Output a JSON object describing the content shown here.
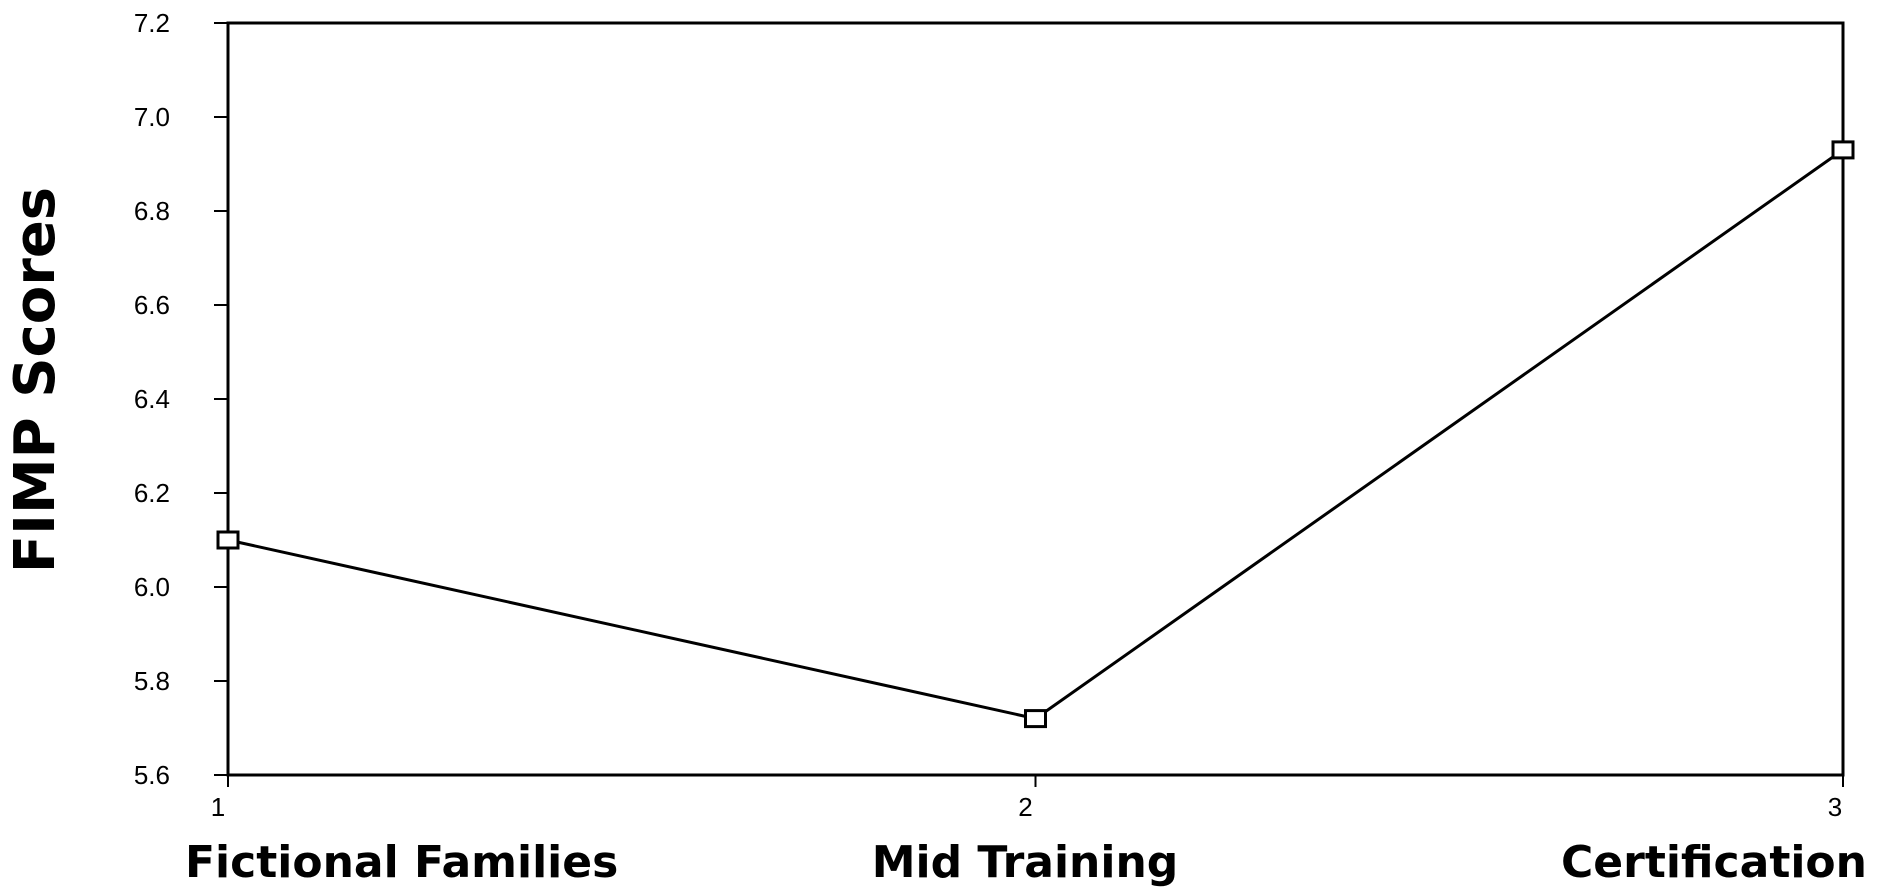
{
  "chart_data": {
    "type": "line",
    "x": [
      1,
      2,
      3
    ],
    "x_tick_labels": [
      "1",
      "2",
      "3"
    ],
    "categories": [
      "Fictional Families",
      "Mid Training",
      "Certification"
    ],
    "series": [
      {
        "values": [
          6.1,
          5.72,
          6.93
        ],
        "marker": "square",
        "color": "#000000"
      }
    ],
    "ylabel": "FIMP Scores",
    "ylim": [
      5.6,
      7.2
    ],
    "y_ticks": [
      5.6,
      5.8,
      6.0,
      6.2,
      6.4,
      6.6,
      6.8,
      7.0,
      7.2
    ],
    "y_tick_labels": [
      "5.6",
      "5.8",
      "6.0",
      "6.2",
      "6.4",
      "6.6",
      "6.8",
      "7.0",
      "7.2"
    ],
    "grid": false,
    "legend": false
  }
}
